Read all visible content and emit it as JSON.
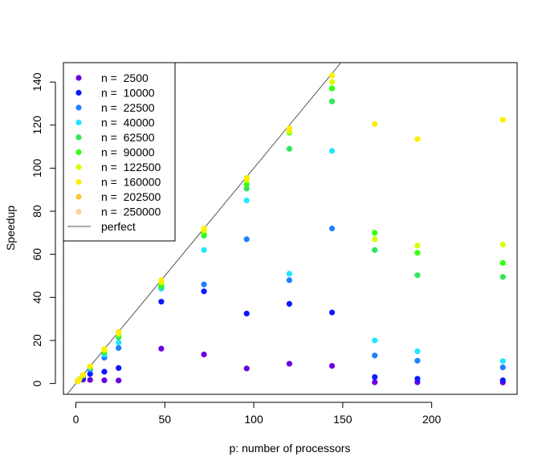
{
  "chart_data": {
    "type": "scatter",
    "title": "",
    "xlabel": "p: number of processors",
    "ylabel": "Speedup",
    "xlim": [
      -7,
      248
    ],
    "ylim": [
      -5,
      149
    ],
    "xticks": [
      0,
      50,
      100,
      150,
      200
    ],
    "yticks": [
      0,
      20,
      40,
      60,
      80,
      100,
      120,
      140
    ],
    "legend_position": "top-left",
    "grid": false,
    "reference_line": {
      "name": "perfect",
      "slope": 1,
      "intercept": 0,
      "color": "#555555"
    },
    "series": [
      {
        "name": "n =  2500",
        "color": "#6a00e0",
        "x": [
          1,
          2,
          4,
          8,
          16,
          24,
          48,
          72,
          96,
          120,
          144,
          168,
          192,
          240
        ],
        "y": [
          1,
          1.9,
          1.8,
          1.7,
          1.5,
          1.4,
          16.2,
          13.5,
          7,
          9.2,
          8.2,
          0.6,
          0.6,
          0.5
        ]
      },
      {
        "name": "n =  10000",
        "color": "#0a18ff",
        "x": [
          1,
          2,
          4,
          8,
          16,
          24,
          48,
          72,
          96,
          120,
          144,
          168,
          192,
          240
        ],
        "y": [
          1,
          2,
          2.5,
          4.5,
          5.5,
          7.2,
          38,
          42.8,
          32.5,
          37,
          33,
          3,
          2.2,
          1.5
        ]
      },
      {
        "name": "n =  22500",
        "color": "#1f7fff",
        "x": [
          1,
          2,
          4,
          8,
          16,
          24,
          48,
          72,
          96,
          120,
          144,
          168,
          192,
          240
        ],
        "y": [
          1,
          2,
          3.5,
          6.5,
          12,
          16.5,
          44.5,
          46,
          67,
          48,
          72,
          13,
          10.6,
          7.5
        ]
      },
      {
        "name": "n =  40000",
        "color": "#22e6ff",
        "x": [
          1,
          2,
          4,
          8,
          16,
          24,
          48,
          72,
          96,
          120,
          144,
          168,
          192,
          240
        ],
        "y": [
          1,
          2,
          3.8,
          7.2,
          13.5,
          19,
          44,
          62,
          85,
          51,
          108,
          20,
          15,
          10.4
        ]
      },
      {
        "name": "n =  62500",
        "color": "#2ee65a",
        "x": [
          1,
          2,
          4,
          8,
          16,
          24,
          48,
          72,
          96,
          120,
          144,
          168,
          192,
          240
        ],
        "y": [
          1,
          2,
          3.9,
          7.6,
          14.5,
          21.5,
          45,
          68.7,
          90.5,
          109,
          131,
          62,
          50.3,
          49.5
        ]
      },
      {
        "name": "n =  90000",
        "color": "#33ff11",
        "x": [
          1,
          2,
          4,
          8,
          16,
          24,
          48,
          72,
          96,
          120,
          144,
          168,
          192,
          240
        ],
        "y": [
          1,
          2,
          3.9,
          7.8,
          15,
          22.5,
          46,
          69.5,
          92.5,
          116.5,
          137,
          70,
          60.7,
          56
        ]
      },
      {
        "name": "n =  122500",
        "color": "#d6ff00",
        "x": [
          1,
          2,
          4,
          8,
          16,
          24,
          48,
          72,
          96,
          120,
          144,
          168,
          192,
          240
        ],
        "y": [
          1,
          2,
          4,
          7.9,
          15.5,
          23,
          47,
          71,
          94.5,
          117,
          140,
          67,
          64,
          64.5
        ]
      },
      {
        "name": "n =  160000",
        "color": "#ffee00",
        "x": [
          1,
          2,
          4,
          8,
          16,
          24,
          48,
          72,
          96,
          120,
          144,
          168,
          192,
          240
        ],
        "y": [
          1,
          2,
          4,
          8,
          16,
          24,
          48,
          72,
          95.5,
          118.5,
          143,
          120.5,
          113.5,
          122.5
        ]
      },
      {
        "name": "n =  202500",
        "color": "#ffc538",
        "x": [],
        "y": []
      },
      {
        "name": "n =  250000",
        "color": "#ffcf9e",
        "x": [],
        "y": []
      }
    ]
  }
}
